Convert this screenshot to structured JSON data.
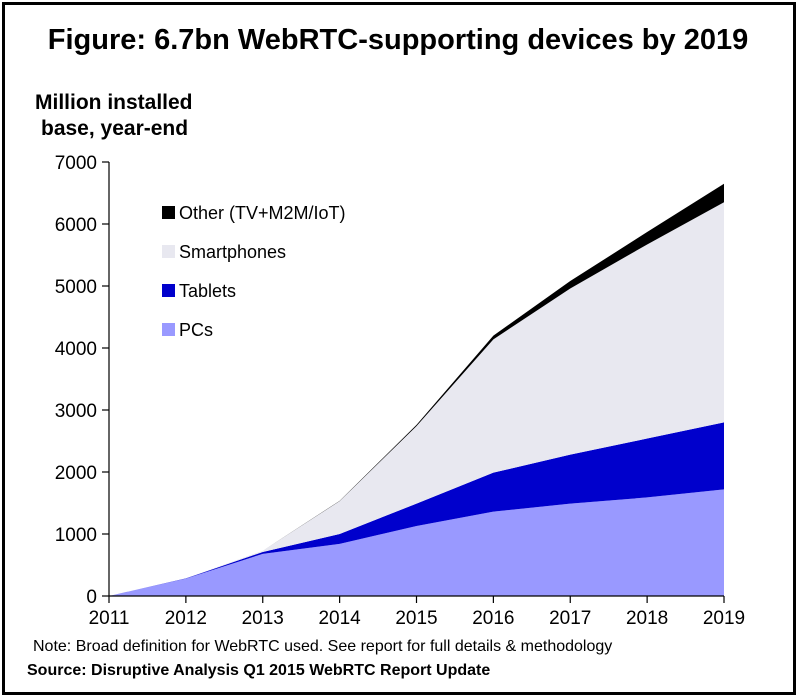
{
  "title": "Figure: 6.7bn WebRTC-supporting devices by 2019",
  "y_axis_label_line1": "Million installed",
  "y_axis_label_line2": "base, year-end",
  "note": "Note: Broad definition for WebRTC used. See report for full details & methodology",
  "source": "Source: Disruptive Analysis Q1 2015 WebRTC Report Update",
  "chart_data": {
    "type": "area",
    "stacked": true,
    "title": "Figure: 6.7bn WebRTC-supporting devices by 2019",
    "ylabel": "Million installed base, year-end",
    "xlabel": "",
    "x": [
      "2011",
      "2012",
      "2013",
      "2014",
      "2015",
      "2016",
      "2017",
      "2018",
      "2019"
    ],
    "ylim": [
      0,
      7000
    ],
    "yticks": [
      "0",
      "1000",
      "2000",
      "3000",
      "4000",
      "5000",
      "6000",
      "7000"
    ],
    "grid": false,
    "legend_position": "top-left",
    "series": [
      {
        "name": "PCs",
        "color": "#9999ff",
        "values": [
          0,
          280,
          680,
          840,
          1130,
          1360,
          1490,
          1590,
          1720
        ]
      },
      {
        "name": "Tablets",
        "color": "#0000cc",
        "values": [
          0,
          5,
          30,
          160,
          360,
          630,
          790,
          950,
          1080
        ]
      },
      {
        "name": "Smartphones",
        "color": "#e8e8f0",
        "values": [
          0,
          0,
          20,
          530,
          1250,
          2150,
          2680,
          3130,
          3550
        ]
      },
      {
        "name": "Other (TV+M2M/IoT)",
        "color": "#000000",
        "values": [
          0,
          0,
          0,
          5,
          20,
          60,
          120,
          200,
          300
        ]
      }
    ]
  }
}
